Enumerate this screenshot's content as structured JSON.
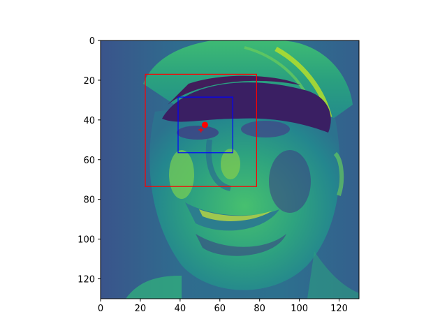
{
  "chart_data": {
    "type": "image",
    "image_description_colormap": "viridis",
    "xlim": [
      0,
      130
    ],
    "ylim": [
      130,
      0
    ],
    "xticks": [
      "0",
      "20",
      "40",
      "60",
      "80",
      "100",
      "120"
    ],
    "yticks": [
      "0",
      "20",
      "40",
      "60",
      "80",
      "100",
      "120"
    ],
    "xtick_values": [
      0,
      20,
      40,
      60,
      80,
      100,
      120
    ],
    "ytick_values": [
      0,
      20,
      40,
      60,
      80,
      100,
      120
    ],
    "boxes": [
      {
        "name": "outer-box",
        "color": "#ff0000",
        "x0": 22.5,
        "y0": 17,
        "x1": 78.5,
        "y1": 73.5
      },
      {
        "name": "inner-box",
        "color": "#0000ff",
        "x0": 39,
        "y0": 28.5,
        "x1": 66.5,
        "y1": 56.5
      }
    ],
    "points": [
      {
        "name": "center-dot",
        "marker": "circle",
        "color": "#ff0000",
        "x": 52.5,
        "y": 42.5
      },
      {
        "name": "center-plus",
        "marker": "plus",
        "color": "#ff0000",
        "x": 50.5,
        "y": 45
      }
    ]
  }
}
